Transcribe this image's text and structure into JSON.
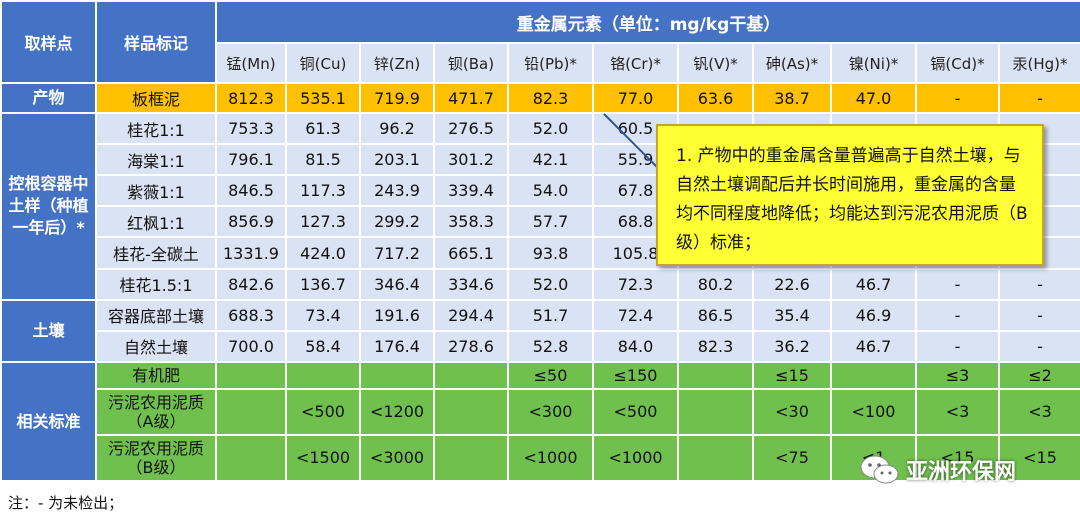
{
  "header": {
    "sampling_point": "取样点",
    "sample_label": "样品标记",
    "heavy_metals_title": "重金属元素（单位：mg/kg干基）",
    "columns": [
      "锰(Mn)",
      "铜(Cu)",
      "锌(Zn)",
      "钡(Ba)",
      "铅(Pb)*",
      "铬(Cr)*",
      "钒(V)*",
      "砷(As)*",
      "镍(Ni)*",
      "镉(Cd)*",
      "汞(Hg)*"
    ]
  },
  "groups": {
    "product": "产物",
    "container": "控根容器中土样（种植一年后）*",
    "soil": "土壤",
    "standards": "相关标准"
  },
  "product_row": {
    "label": "板框泥",
    "values": [
      "812.3",
      "535.1",
      "719.9",
      "471.7",
      "82.3",
      "77.0",
      "63.6",
      "38.7",
      "47.0",
      "-",
      "-"
    ]
  },
  "container_rows": [
    {
      "label": "桂花1:1",
      "values": [
        "753.3",
        "61.3",
        "96.2",
        "276.5",
        "52.0",
        "60.5",
        "",
        "",
        "",
        "",
        ""
      ]
    },
    {
      "label": "海棠1:1",
      "values": [
        "796.1",
        "81.5",
        "203.1",
        "301.2",
        "42.1",
        "55.9",
        "",
        "",
        "",
        "",
        ""
      ]
    },
    {
      "label": "紫薇1:1",
      "values": [
        "846.5",
        "117.3",
        "243.9",
        "339.4",
        "54.0",
        "67.8",
        "",
        "",
        "",
        "",
        ""
      ]
    },
    {
      "label": "红枫1:1",
      "values": [
        "856.9",
        "127.3",
        "299.2",
        "358.3",
        "57.7",
        "68.8",
        "",
        "",
        "",
        "",
        ""
      ]
    },
    {
      "label": "桂花-全碳土",
      "values": [
        "1331.9",
        "424.0",
        "717.2",
        "665.1",
        "93.8",
        "105.8",
        "",
        "",
        "",
        "",
        ""
      ]
    },
    {
      "label": "桂花1.5:1",
      "values": [
        "842.6",
        "136.7",
        "346.4",
        "334.6",
        "52.0",
        "72.3",
        "80.2",
        "22.6",
        "46.7",
        "-",
        "-"
      ]
    }
  ],
  "soil_rows": [
    {
      "label": "容器底部土壤",
      "values": [
        "688.3",
        "73.4",
        "191.6",
        "294.4",
        "51.7",
        "72.4",
        "86.5",
        "35.4",
        "46.9",
        "-",
        "-"
      ]
    },
    {
      "label": "自然土壤",
      "values": [
        "700.0",
        "58.4",
        "176.4",
        "278.6",
        "52.8",
        "84.0",
        "82.3",
        "36.2",
        "46.7",
        "-",
        "-"
      ]
    }
  ],
  "standard_rows": [
    {
      "label": "有机肥",
      "values": [
        "",
        "",
        "",
        "",
        "≤50",
        "≤150",
        "",
        "≤15",
        "",
        "≤3",
        "≤2"
      ]
    },
    {
      "label": "污泥农用泥质（A级）",
      "values": [
        "",
        "<500",
        "<1200",
        "",
        "<300",
        "<500",
        "",
        "<30",
        "<100",
        "<3",
        "<3"
      ]
    },
    {
      "label": "污泥农用泥质（B级）",
      "values": [
        "",
        "<1500",
        "<3000",
        "",
        "<1000",
        "<1000",
        "",
        "<75",
        "<1",
        "<15",
        "<15"
      ]
    }
  ],
  "callout": "1. 产物中的重金属含量普遍高于自然土壤，与自然土壤调配后并长时间施用，重金属的含量均不同程度地降低；均能达到污泥农用泥质（B级）标准；",
  "note": "注：- 为未检出；",
  "watermark": {
    "text": "亚洲环保网",
    "icon": "wechat-icon"
  },
  "colors": {
    "header_blue": "#4472c4",
    "cell_blue": "#dae3f3",
    "product_orange": "#ffc000",
    "standard_green": "#70c04e",
    "callout_yellow": "#ffff33"
  }
}
